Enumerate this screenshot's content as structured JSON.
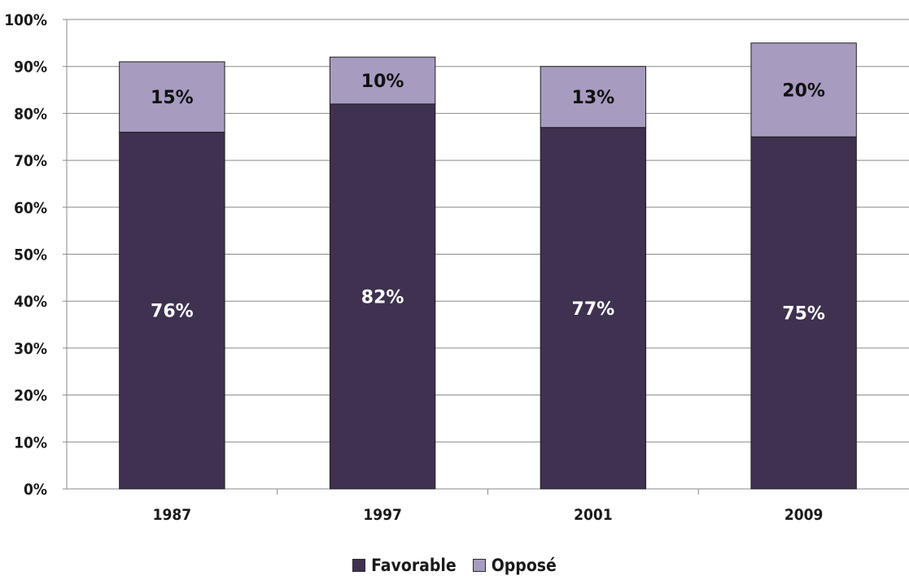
{
  "chart_data": {
    "type": "bar",
    "stacked": true,
    "categories": [
      "1987",
      "1997",
      "2001",
      "2009"
    ],
    "series": [
      {
        "name": "Favorable",
        "values": [
          76,
          82,
          77,
          75
        ],
        "labels": [
          "76%",
          "82%",
          "77%",
          "75%"
        ],
        "color": "#3f3150",
        "label_color": "#ffffff"
      },
      {
        "name": "Opposé",
        "values": [
          15,
          10,
          13,
          20
        ],
        "labels": [
          "15%",
          "10%",
          "13%",
          "20%"
        ],
        "color": "#a79bbf",
        "label_color": "#111111"
      }
    ],
    "yticks": [
      "0%",
      "10%",
      "20%",
      "30%",
      "40%",
      "50%",
      "60%",
      "70%",
      "80%",
      "90%",
      "100%"
    ],
    "ylim": [
      0,
      100
    ],
    "grid": true,
    "legend_position": "bottom",
    "title": "",
    "xlabel": "",
    "ylabel": ""
  }
}
